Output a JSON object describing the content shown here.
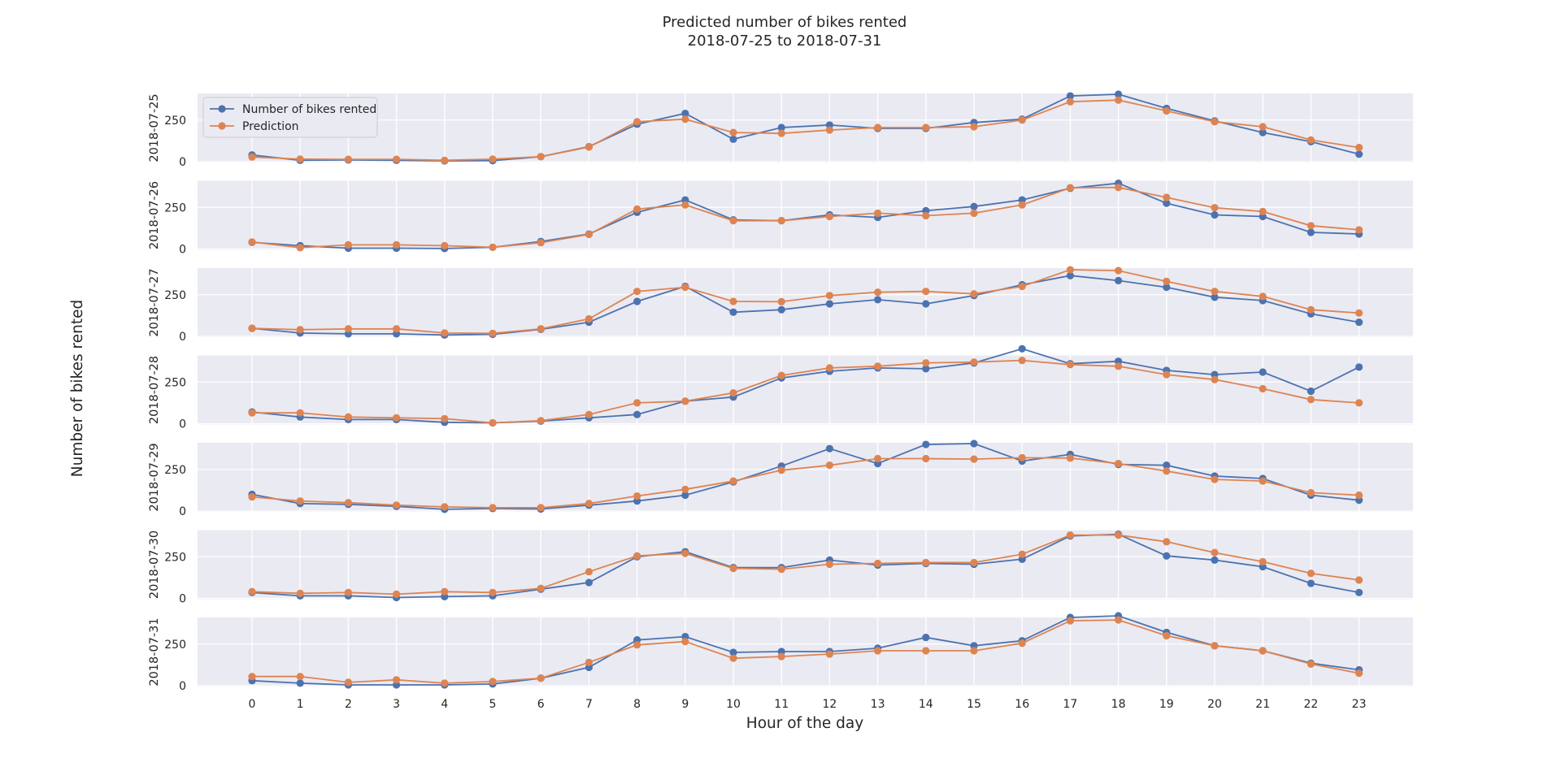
{
  "chart_data": {
    "type": "line",
    "title": "Predicted number of bikes rented",
    "subtitle": "2018-07-25 to 2018-07-31",
    "xlabel": "Hour of the day",
    "ylabel": "Number of bikes rented",
    "x": [
      0,
      1,
      2,
      3,
      4,
      5,
      6,
      7,
      8,
      9,
      10,
      11,
      12,
      13,
      14,
      15,
      16,
      17,
      18,
      19,
      20,
      21,
      22,
      23
    ],
    "ylim": [
      -5,
      410
    ],
    "yticks": [
      0,
      250
    ],
    "grid": true,
    "legend": {
      "position": "upper-left of first panel",
      "entries": [
        "Number of bikes rented",
        "Prediction"
      ]
    },
    "colors": {
      "actual": "#4c72b0",
      "prediction": "#dd8452"
    },
    "panels": [
      {
        "label": "2018-07-25",
        "series": [
          {
            "name": "Number of bikes rented",
            "values": [
              40,
              8,
              10,
              8,
              5,
              6,
              30,
              90,
              225,
              290,
              135,
              205,
              220,
              200,
              200,
              235,
              255,
              395,
              405,
              320,
              245,
              175,
              120,
              45
            ]
          },
          {
            "name": "Prediction",
            "values": [
              28,
              15,
              14,
              14,
              8,
              15,
              30,
              88,
              240,
              255,
              175,
              170,
              190,
              205,
              205,
              210,
              250,
              360,
              370,
              305,
              240,
              210,
              130,
              85
            ]
          }
        ]
      },
      {
        "label": "2018-07-26",
        "series": [
          {
            "name": "Number of bikes rented",
            "values": [
              40,
              20,
              5,
              5,
              3,
              10,
              45,
              90,
              220,
              295,
              175,
              170,
              205,
              190,
              230,
              255,
              295,
              365,
              395,
              275,
              205,
              195,
              100,
              90
            ]
          },
          {
            "name": "Prediction",
            "values": [
              42,
              8,
              25,
              25,
              20,
              10,
              38,
              88,
              240,
              265,
              170,
              170,
              195,
              215,
              200,
              215,
              265,
              368,
              370,
              310,
              248,
              225,
              140,
              115
            ]
          }
        ]
      },
      {
        "label": "2018-07-27",
        "series": [
          {
            "name": "Number of bikes rented",
            "values": [
              48,
              20,
              15,
              15,
              8,
              12,
              42,
              85,
              210,
              300,
              145,
              160,
              195,
              220,
              195,
              245,
              310,
              365,
              335,
              295,
              235,
              215,
              135,
              85
            ]
          },
          {
            "name": "Prediction",
            "values": [
              48,
              40,
              45,
              45,
              20,
              18,
              45,
              105,
              270,
              295,
              210,
              208,
              245,
              265,
              270,
              255,
              300,
              400,
              395,
              330,
              270,
              240,
              160,
              140
            ]
          }
        ]
      },
      {
        "label": "2018-07-28",
        "series": [
          {
            "name": "Number of bikes rented",
            "values": [
              70,
              40,
              25,
              25,
              8,
              5,
              15,
              35,
              55,
              135,
              160,
              275,
              315,
              335,
              330,
              365,
              450,
              360,
              375,
              320,
              295,
              310,
              195,
              340
            ]
          },
          {
            "name": "Prediction",
            "values": [
              65,
              65,
              40,
              35,
              30,
              5,
              18,
              55,
              125,
              135,
              185,
              290,
              335,
              345,
              365,
              370,
              380,
              355,
              345,
              295,
              265,
              210,
              145,
              125
            ]
          }
        ]
      },
      {
        "label": "2018-07-29",
        "series": [
          {
            "name": "Number of bikes rented",
            "values": [
              100,
              45,
              40,
              28,
              10,
              15,
              12,
              35,
              60,
              95,
              175,
              270,
              375,
              285,
              400,
              405,
              300,
              340,
              280,
              275,
              210,
              195,
              95,
              65
            ]
          },
          {
            "name": "Prediction",
            "values": [
              85,
              60,
              50,
              35,
              25,
              20,
              20,
              45,
              90,
              130,
              180,
              245,
              275,
              315,
              315,
              312,
              320,
              318,
              285,
              240,
              190,
              180,
              110,
              95
            ]
          }
        ]
      },
      {
        "label": "2018-07-30",
        "series": [
          {
            "name": "Number of bikes rented",
            "values": [
              35,
              15,
              15,
              5,
              10,
              15,
              55,
              95,
              250,
              280,
              185,
              185,
              230,
              200,
              210,
              205,
              235,
              375,
              385,
              255,
              230,
              190,
              90,
              35
            ]
          },
          {
            "name": "Prediction",
            "values": [
              40,
              30,
              35,
              25,
              40,
              35,
              60,
              160,
              255,
              270,
              180,
              175,
              205,
              210,
              215,
              215,
              265,
              380,
              380,
              340,
              275,
              220,
              150,
              110
            ]
          }
        ]
      },
      {
        "label": "2018-07-31",
        "series": [
          {
            "name": "Number of bikes rented",
            "values": [
              30,
              15,
              5,
              5,
              5,
              10,
              45,
              110,
              275,
              295,
              200,
              205,
              205,
              225,
              290,
              240,
              270,
              410,
              420,
              320,
              240,
              210,
              135,
              95
            ]
          },
          {
            "name": "Prediction",
            "values": [
              55,
              55,
              20,
              35,
              15,
              25,
              45,
              140,
              245,
              265,
              165,
              175,
              190,
              210,
              210,
              210,
              255,
              390,
              395,
              300,
              240,
              210,
              130,
              75
            ]
          }
        ]
      }
    ]
  }
}
